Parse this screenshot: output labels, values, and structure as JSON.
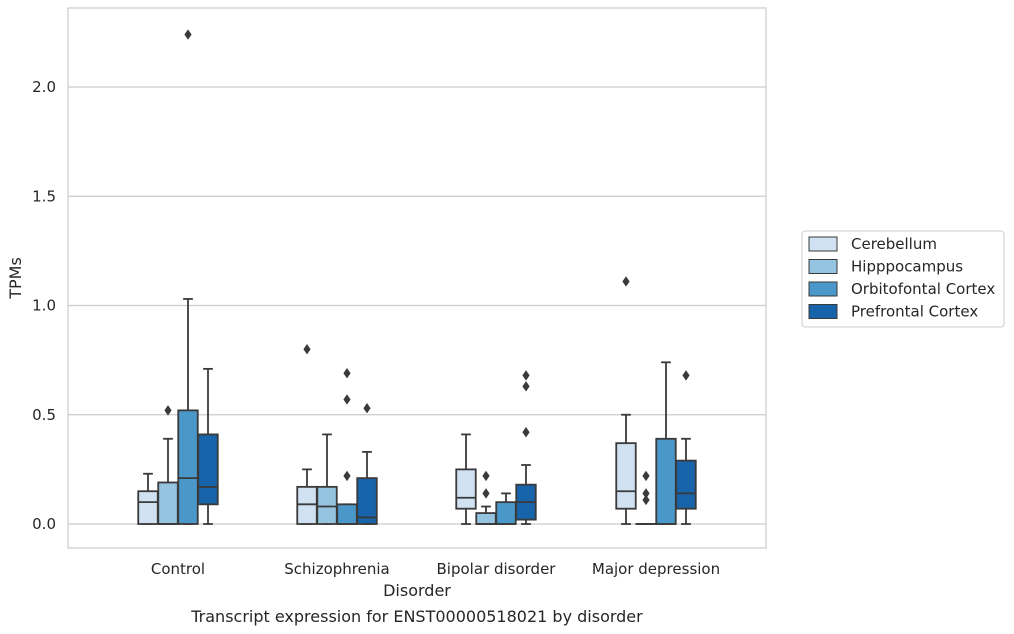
{
  "chart_data": {
    "type": "box",
    "title": "",
    "caption": "Transcript expression for ENST00000518021 by disorder",
    "xlabel": "Disorder",
    "ylabel": "TPMs",
    "ylim": [
      -0.11,
      2.36
    ],
    "yticks": [
      "0.0",
      "0.5",
      "1.0",
      "1.5",
      "2.0"
    ],
    "ytick_values": [
      0.0,
      0.5,
      1.0,
      1.5,
      2.0
    ],
    "grid": "horizontal",
    "legend_position": "right",
    "categories": [
      "Control",
      "Schizophrenia",
      "Bipolar disorder",
      "Major depression"
    ],
    "series": [
      {
        "name": "Cerebellum",
        "color": "#d0e1f2",
        "boxes": [
          {
            "low": 0.0,
            "q1": 0.0,
            "median": 0.1,
            "q3": 0.15,
            "high": 0.23,
            "outliers": []
          },
          {
            "low": 0.0,
            "q1": 0.0,
            "median": 0.09,
            "q3": 0.17,
            "high": 0.25,
            "outliers": [
              0.8
            ]
          },
          {
            "low": 0.0,
            "q1": 0.07,
            "median": 0.12,
            "q3": 0.25,
            "high": 0.41,
            "outliers": []
          },
          {
            "low": 0.0,
            "q1": 0.07,
            "median": 0.15,
            "q3": 0.37,
            "high": 0.5,
            "outliers": [
              1.11
            ]
          }
        ]
      },
      {
        "name": "Hipppocampus",
        "color": "#94c4df",
        "boxes": [
          {
            "low": 0.0,
            "q1": 0.0,
            "median": 0.0,
            "q3": 0.19,
            "high": 0.39,
            "outliers": [
              0.52
            ]
          },
          {
            "low": 0.0,
            "q1": 0.0,
            "median": 0.08,
            "q3": 0.17,
            "high": 0.41,
            "outliers": []
          },
          {
            "low": 0.0,
            "q1": 0.0,
            "median": 0.0,
            "q3": 0.05,
            "high": 0.08,
            "outliers": [
              0.14,
              0.22
            ]
          },
          {
            "low": 0.0,
            "q1": 0.0,
            "median": 0.0,
            "q3": 0.0,
            "high": 0.0,
            "outliers": [
              0.11,
              0.14,
              0.22
            ]
          }
        ]
      },
      {
        "name": "Orbitofontal Cortex",
        "color": "#4a98c9",
        "boxes": [
          {
            "low": 0.0,
            "q1": 0.0,
            "median": 0.21,
            "q3": 0.52,
            "high": 1.03,
            "outliers": [
              2.24
            ]
          },
          {
            "low": 0.0,
            "q1": 0.0,
            "median": 0.0,
            "q3": 0.09,
            "high": 0.09,
            "outliers": [
              0.22,
              0.57,
              0.69
            ]
          },
          {
            "low": 0.0,
            "q1": 0.0,
            "median": 0.0,
            "q3": 0.1,
            "high": 0.14,
            "outliers": []
          },
          {
            "low": 0.0,
            "q1": 0.0,
            "median": 0.0,
            "q3": 0.39,
            "high": 0.74,
            "outliers": []
          }
        ]
      },
      {
        "name": "Prefrontal Cortex",
        "color": "#1764ab",
        "boxes": [
          {
            "low": 0.0,
            "q1": 0.09,
            "median": 0.17,
            "q3": 0.41,
            "high": 0.71,
            "outliers": []
          },
          {
            "low": 0.0,
            "q1": 0.0,
            "median": 0.03,
            "q3": 0.21,
            "high": 0.33,
            "outliers": [
              0.53
            ]
          },
          {
            "low": 0.0,
            "q1": 0.02,
            "median": 0.1,
            "q3": 0.18,
            "high": 0.27,
            "outliers": [
              0.42,
              0.63,
              0.68
            ]
          },
          {
            "low": 0.0,
            "q1": 0.07,
            "median": 0.14,
            "q3": 0.29,
            "high": 0.39,
            "outliers": [
              0.68
            ]
          }
        ]
      }
    ]
  }
}
